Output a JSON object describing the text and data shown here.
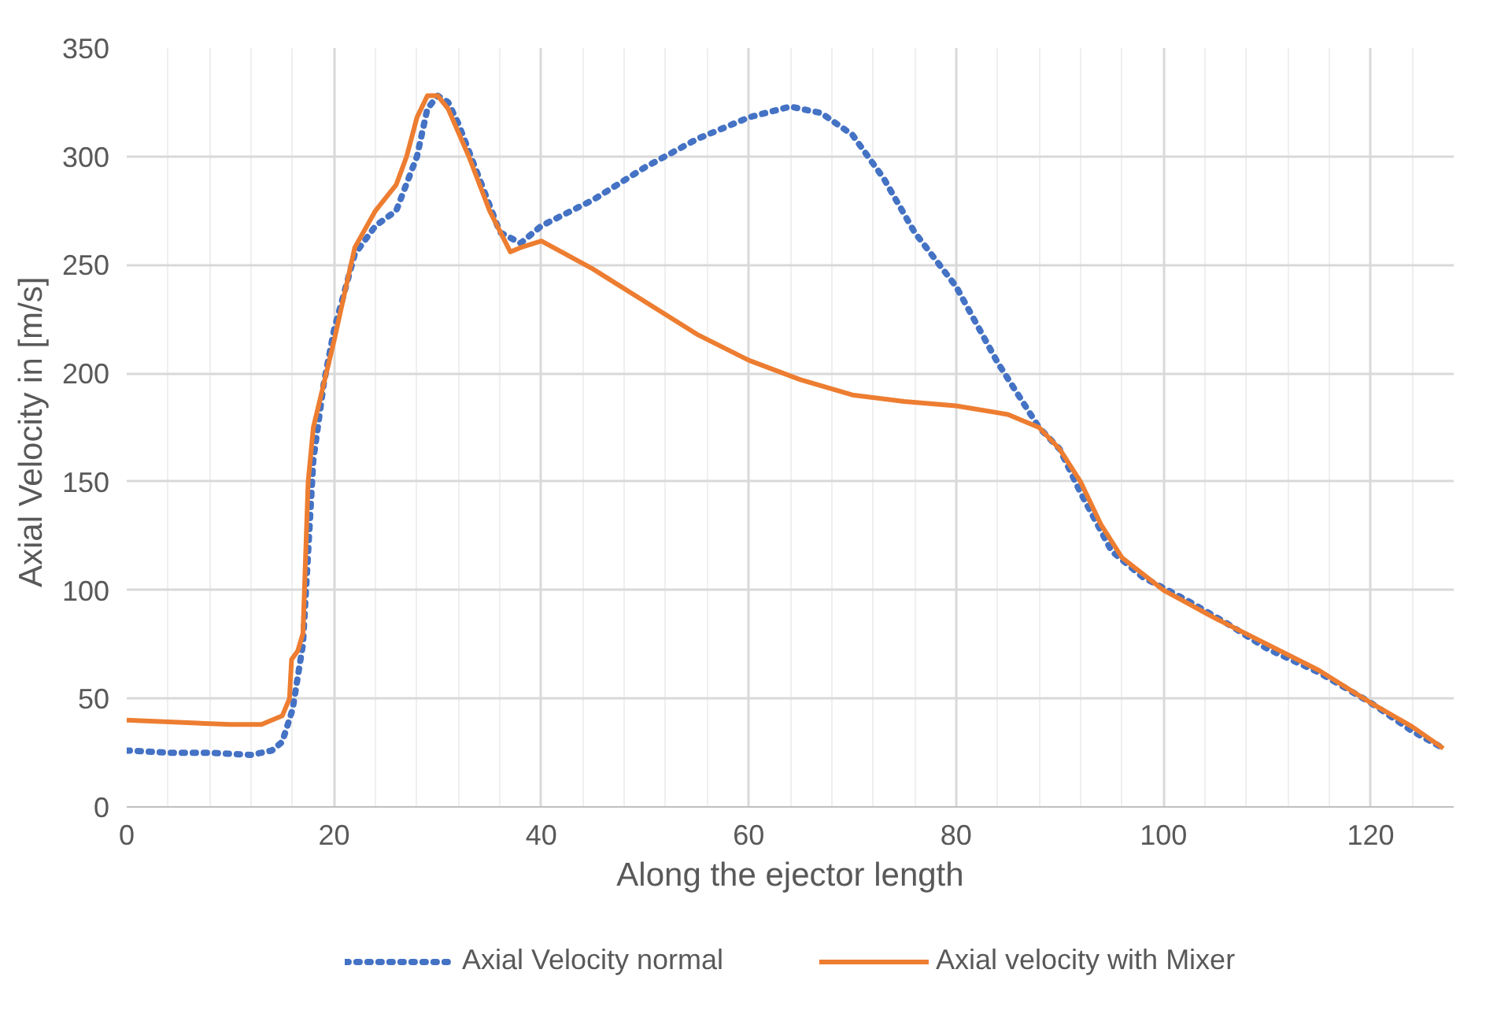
{
  "chart_data": {
    "type": "line",
    "xlabel": "Along the ejector length",
    "ylabel": "Axial Velocity in  [m/s]",
    "xlim": [
      0,
      128
    ],
    "xticks": [
      0,
      20,
      40,
      60,
      80,
      100,
      120
    ],
    "ylim": [
      0,
      350
    ],
    "yticks": [
      0,
      50,
      100,
      150,
      200,
      250,
      300,
      350
    ],
    "grid": true,
    "legend": "bottom",
    "marker": "none",
    "series": [
      {
        "name": "Axial Velocity normal",
        "color": "#4472c4",
        "line_style": "dotted",
        "x": [
          0,
          4,
          8,
          12,
          14,
          15,
          16,
          17,
          18,
          19,
          20,
          22,
          24,
          26,
          28,
          29,
          30,
          31,
          32,
          34,
          36,
          38,
          40,
          45,
          50,
          55,
          60,
          64,
          67,
          70,
          73,
          76,
          80,
          84,
          88,
          90,
          92,
          95,
          98,
          102,
          106,
          110,
          115,
          120,
          124,
          127
        ],
        "values": [
          26,
          25,
          25,
          24,
          26,
          30,
          45,
          75,
          160,
          195,
          220,
          255,
          268,
          275,
          300,
          322,
          328,
          325,
          315,
          290,
          265,
          260,
          268,
          280,
          295,
          308,
          318,
          323,
          320,
          310,
          290,
          265,
          240,
          205,
          175,
          165,
          145,
          118,
          106,
          96,
          85,
          73,
          62,
          48,
          35,
          27
        ]
      },
      {
        "name": "Axial velocity with Mixer",
        "color": "#ed7d31",
        "line_style": "solid",
        "x": [
          0,
          5,
          10,
          13,
          15,
          15.7,
          15.9,
          16.5,
          17,
          17.5,
          18,
          20,
          22,
          24,
          26,
          27,
          28,
          29,
          30,
          31,
          33,
          35,
          37,
          38,
          40,
          45,
          50,
          55,
          60,
          65,
          70,
          75,
          80,
          85,
          88,
          90,
          92,
          94,
          96,
          100,
          105,
          110,
          115,
          120,
          124,
          127
        ],
        "values": [
          40,
          39,
          38,
          38,
          42,
          50,
          68,
          72,
          80,
          150,
          175,
          215,
          258,
          275,
          287,
          300,
          318,
          328,
          328,
          322,
          300,
          275,
          256,
          258,
          261,
          248,
          233,
          218,
          206,
          197,
          190,
          187,
          185,
          181,
          175,
          165,
          150,
          130,
          115,
          100,
          87,
          75,
          63,
          48,
          37,
          27
        ]
      }
    ]
  }
}
